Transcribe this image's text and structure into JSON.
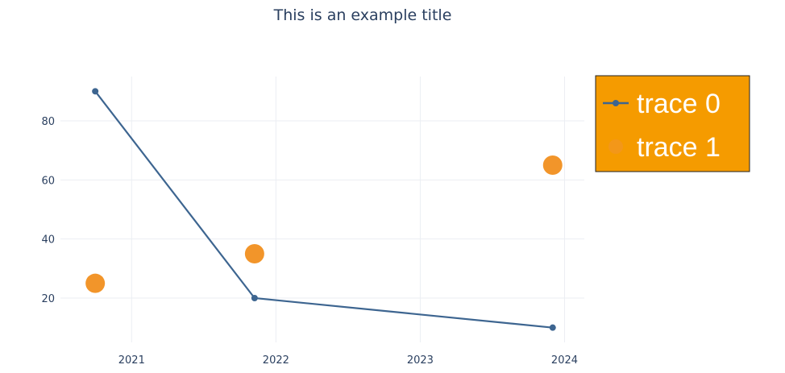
{
  "chart_data": {
    "type": "line",
    "title": "This is an example title",
    "xlabel": "",
    "ylabel": "",
    "x_axis": {
      "type": "date",
      "range": [
        "2020-07-05",
        "2024-02-20"
      ],
      "tick_labels": [
        "2021",
        "2022",
        "2023",
        "2024"
      ],
      "tick_dates": [
        "2021-01-01",
        "2022-01-01",
        "2023-01-01",
        "2024-01-01"
      ]
    },
    "y_axis": {
      "range": [
        5,
        95
      ],
      "tick_values": [
        20,
        40,
        60,
        80
      ],
      "tick_labels": [
        "20",
        "40",
        "60",
        "80"
      ]
    },
    "grid": true,
    "legend": {
      "placement": "top-right",
      "background": "#f59b00",
      "border": "#222222"
    },
    "series": [
      {
        "name": "trace 0",
        "mode": "lines+markers",
        "color": "#3d6590",
        "x": [
          "2020-10-01",
          "2021-11-08",
          "2023-12-02"
        ],
        "y": [
          90,
          20,
          10
        ]
      },
      {
        "name": "trace 1",
        "mode": "markers",
        "color": "#f2952a",
        "x": [
          "2020-10-01",
          "2021-11-08",
          "2023-12-02"
        ],
        "y": [
          25,
          35,
          65
        ]
      }
    ]
  }
}
